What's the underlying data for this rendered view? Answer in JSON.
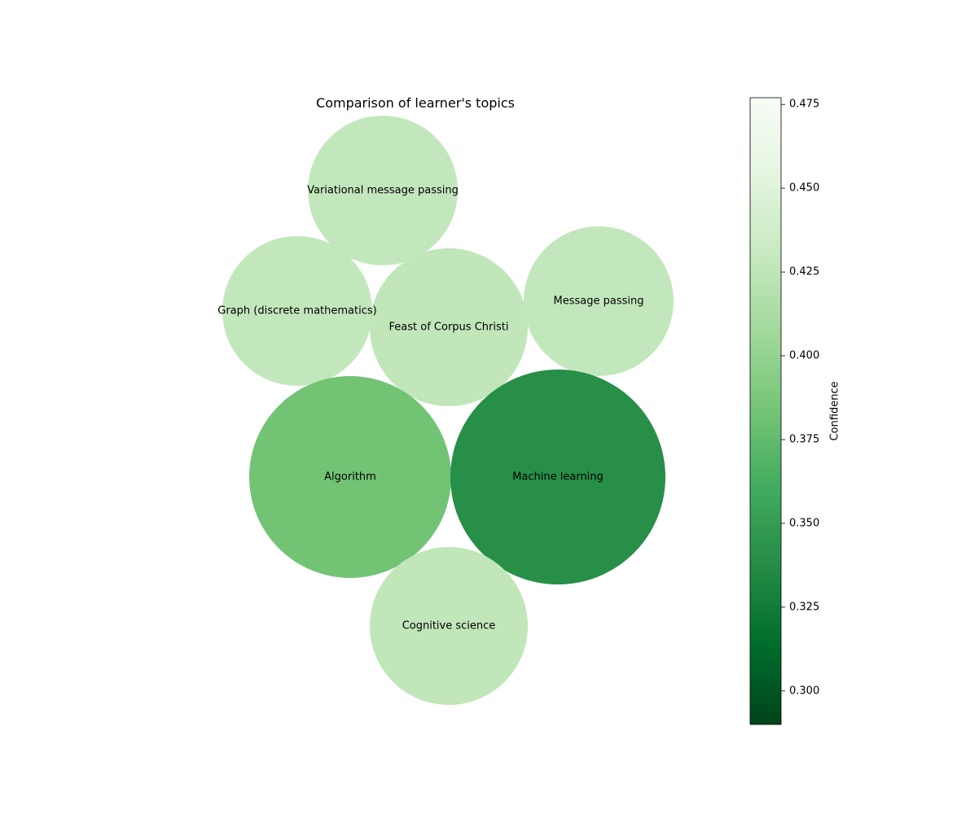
{
  "chart_data": {
    "type": "bubble",
    "title": "Comparison of learner's topics",
    "bubbles": [
      {
        "label": "Variational message passing",
        "confidence": 0.428
      },
      {
        "label": "Graph (discrete mathematics)",
        "confidence": 0.428
      },
      {
        "label": "Feast of Corpus Christi",
        "confidence": 0.426
      },
      {
        "label": "Message passing",
        "confidence": 0.428
      },
      {
        "label": "Algorithm",
        "confidence": 0.383
      },
      {
        "label": "Machine learning",
        "confidence": 0.34
      },
      {
        "label": "Cognitive science",
        "confidence": 0.426
      }
    ],
    "colorbar": {
      "label": "Confidence",
      "range": [
        0.29,
        0.477
      ],
      "ticks": [
        "0.300",
        "0.325",
        "0.350",
        "0.375",
        "0.400",
        "0.425",
        "0.450",
        "0.475"
      ],
      "colormap": "Greens (reversed)"
    },
    "axes": "off",
    "grid": false
  }
}
